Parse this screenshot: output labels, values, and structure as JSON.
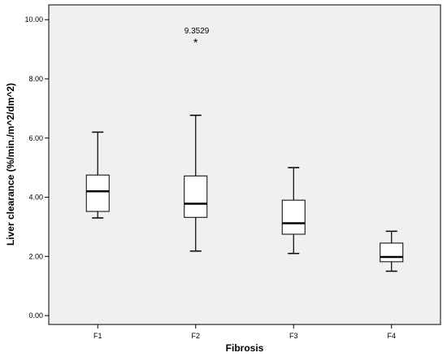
{
  "chart_data": {
    "type": "boxplot",
    "xlabel": "Fibrosis",
    "ylabel": "Liver clearance (%/min./m^2/dm^2)",
    "ylim": [
      -0.3,
      10.5
    ],
    "yticks": [
      "0.00",
      "2.00",
      "4.00",
      "6.00",
      "8.00",
      "10.00"
    ],
    "grid": false,
    "background_color": "#f0f0f0",
    "categories": [
      "F1",
      "F2",
      "F3",
      "F4"
    ],
    "boxes": [
      {
        "category": "F1",
        "min": 3.3,
        "q1": 3.52,
        "median": 4.2,
        "q3": 4.75,
        "max": 6.2
      },
      {
        "category": "F2",
        "min": 2.18,
        "q1": 3.32,
        "median": 3.78,
        "q3": 4.72,
        "max": 6.77
      },
      {
        "category": "F3",
        "min": 2.1,
        "q1": 2.75,
        "median": 3.12,
        "q3": 3.9,
        "max": 5.0
      },
      {
        "category": "F4",
        "min": 1.5,
        "q1": 1.82,
        "median": 1.98,
        "q3": 2.45,
        "max": 2.85
      }
    ],
    "outliers": [
      {
        "category": "F2",
        "value": 9.35,
        "label": "9.3529",
        "marker": "*"
      }
    ]
  }
}
